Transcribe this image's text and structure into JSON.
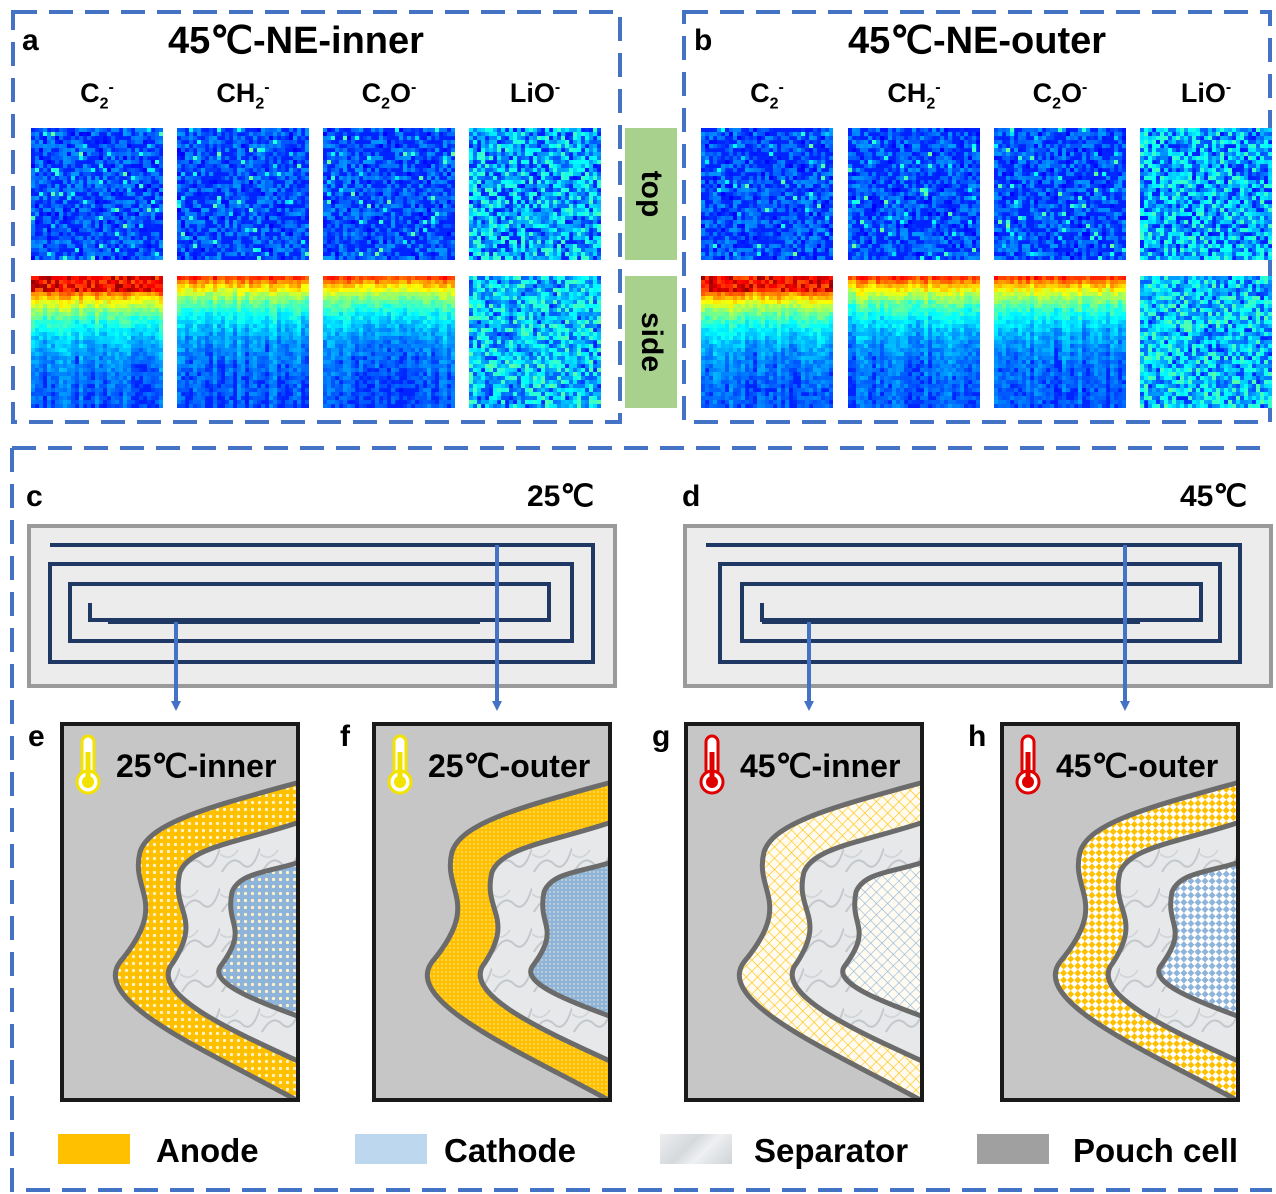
{
  "panel_a": {
    "letter": "a",
    "title": "45℃-NE-inner"
  },
  "panel_b": {
    "letter": "b",
    "title": "45℃-NE-outer"
  },
  "ions": [
    {
      "base": "C",
      "sub": "2",
      "sup": "-"
    },
    {
      "base": "CH",
      "sub": "2",
      "sup": "-"
    },
    {
      "base": "C",
      "sub": "2",
      "mid": "O",
      "sup": "-"
    },
    {
      "base": "LiO",
      "sub": "",
      "sup": "-"
    }
  ],
  "tags": {
    "top": "top",
    "side": "side"
  },
  "panel_c": {
    "letter": "c",
    "temp": "25℃"
  },
  "panel_d": {
    "letter": "d",
    "temp": "45℃"
  },
  "cards": [
    {
      "letter": "e",
      "title": "25℃-inner",
      "thermo_color": "#f2e200",
      "pattern": "dots"
    },
    {
      "letter": "f",
      "title": "25℃-outer",
      "thermo_color": "#f2e200",
      "pattern": "fine"
    },
    {
      "letter": "g",
      "title": "45℃-inner",
      "thermo_color": "#e00000",
      "pattern": "grid"
    },
    {
      "letter": "h",
      "title": "45℃-outer",
      "thermo_color": "#e00000",
      "pattern": "checker"
    }
  ],
  "legend": [
    {
      "label": "Anode",
      "color": "#ffc000"
    },
    {
      "label": "Cathode",
      "color": "#bdd7ee"
    },
    {
      "label": "Separator",
      "color": "#e4e6e8"
    },
    {
      "label": "Pouch cell",
      "color": "#a0a0a0"
    }
  ],
  "colors": {
    "dash": "#4472c4",
    "spiral": "#1f3864",
    "arrow": "#4472c4",
    "pouch": "#c6c6c6",
    "frame": "#9a9a9a",
    "tag": "#a9d18e"
  }
}
